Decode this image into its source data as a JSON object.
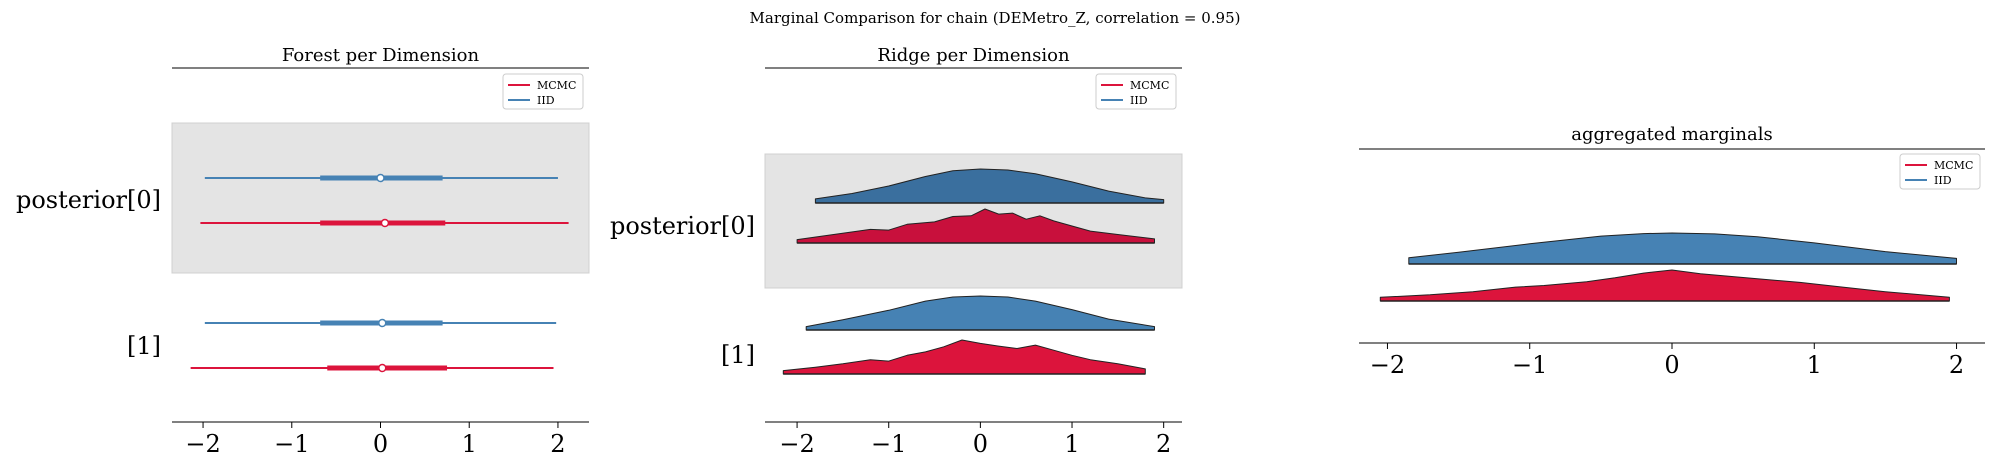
{
  "suptitle": "Marginal Comparison for chain (DEMetro_Z, correlation = 0.95)",
  "colors": {
    "mcmc": "#dc143c",
    "mcmc_dark": "#c8103c",
    "iid": "#4682b4",
    "iid_dark": "#3a6f9e",
    "band": "#e4e4e4"
  },
  "legend": [
    "MCMC",
    "IID"
  ],
  "chart_data": [
    {
      "type": "forest",
      "title": "Forest per Dimension",
      "xlim": [
        -2.35,
        2.35
      ],
      "xticks": [
        -2,
        -1,
        0,
        1,
        2
      ],
      "tick_labels": [
        "−2",
        "−1",
        "0",
        "1",
        "2"
      ],
      "legend_loc": "upper right",
      "rows": [
        {
          "label": "posterior[0]",
          "shaded": true,
          "series": [
            {
              "name": "IID",
              "hdi": [
                -1.98,
                2.0
              ],
              "iqr": [
                -0.68,
                0.7
              ],
              "median": 0.0
            },
            {
              "name": "MCMC",
              "hdi": [
                -2.03,
                2.12
              ],
              "iqr": [
                -0.68,
                0.73
              ],
              "median": 0.05
            }
          ]
        },
        {
          "label": "[1]",
          "shaded": false,
          "series": [
            {
              "name": "IID",
              "hdi": [
                -1.98,
                1.98
              ],
              "iqr": [
                -0.68,
                0.7
              ],
              "median": 0.02
            },
            {
              "name": "MCMC",
              "hdi": [
                -2.14,
                1.95
              ],
              "iqr": [
                -0.6,
                0.75
              ],
              "median": 0.02
            }
          ]
        }
      ]
    },
    {
      "type": "ridge",
      "title": "Ridge per Dimension",
      "xlim": [
        -2.35,
        2.2
      ],
      "xticks": [
        -2,
        -1,
        0,
        1,
        2
      ],
      "tick_labels": [
        "−2",
        "−1",
        "0",
        "1",
        "2"
      ],
      "legend_loc": "upper right",
      "rows": [
        {
          "label": "posterior[0]",
          "shaded": true,
          "series": [
            {
              "name": "IID",
              "x": [
                -1.8,
                -1.4,
                -1.0,
                -0.6,
                -0.3,
                0.0,
                0.3,
                0.6,
                1.0,
                1.4,
                1.8,
                2.0
              ],
              "y": [
                0.12,
                0.28,
                0.5,
                0.78,
                0.95,
                1.0,
                0.97,
                0.86,
                0.62,
                0.35,
                0.15,
                0.1
              ]
            },
            {
              "name": "MCMC",
              "x": [
                -2.0,
                -1.6,
                -1.2,
                -1.0,
                -0.8,
                -0.5,
                -0.3,
                -0.1,
                0.05,
                0.2,
                0.35,
                0.5,
                0.65,
                0.8,
                1.0,
                1.2,
                1.5,
                1.9
              ],
              "y": [
                0.1,
                0.25,
                0.4,
                0.38,
                0.55,
                0.62,
                0.78,
                0.8,
                1.0,
                0.85,
                0.88,
                0.7,
                0.8,
                0.65,
                0.5,
                0.35,
                0.25,
                0.12
              ]
            }
          ]
        },
        {
          "label": "[1]",
          "shaded": false,
          "series": [
            {
              "name": "IID",
              "x": [
                -1.9,
                -1.5,
                -1.0,
                -0.6,
                -0.3,
                0.0,
                0.3,
                0.6,
                1.0,
                1.4,
                1.9
              ],
              "y": [
                0.1,
                0.3,
                0.58,
                0.85,
                0.97,
                1.0,
                0.97,
                0.85,
                0.6,
                0.32,
                0.1
              ]
            },
            {
              "name": "MCMC",
              "x": [
                -2.15,
                -1.8,
                -1.5,
                -1.2,
                -1.0,
                -0.8,
                -0.6,
                -0.4,
                -0.2,
                0.0,
                0.2,
                0.4,
                0.6,
                0.8,
                1.0,
                1.2,
                1.5,
                1.8
              ],
              "y": [
                0.1,
                0.2,
                0.3,
                0.42,
                0.38,
                0.55,
                0.65,
                0.8,
                1.0,
                0.9,
                0.82,
                0.75,
                0.85,
                0.7,
                0.55,
                0.42,
                0.3,
                0.15
              ]
            }
          ]
        }
      ]
    },
    {
      "type": "ridge",
      "title": "aggregated marginals",
      "xlim": [
        -2.2,
        2.2
      ],
      "xticks": [
        -2,
        -1,
        0,
        1,
        2
      ],
      "tick_labels": [
        "−2",
        "−1",
        "0",
        "1",
        "2"
      ],
      "legend_loc": "upper right",
      "rows": [
        {
          "label": "",
          "shaded": false,
          "series": [
            {
              "name": "IID",
              "x": [
                -1.85,
                -1.5,
                -1.0,
                -0.5,
                -0.2,
                0.0,
                0.3,
                0.6,
                1.0,
                1.5,
                2.0
              ],
              "y": [
                0.2,
                0.38,
                0.65,
                0.9,
                0.98,
                1.0,
                0.97,
                0.88,
                0.68,
                0.4,
                0.18
              ]
            },
            {
              "name": "MCMC",
              "x": [
                -2.05,
                -1.7,
                -1.4,
                -1.1,
                -0.9,
                -0.6,
                -0.4,
                -0.2,
                0.0,
                0.2,
                0.4,
                0.6,
                0.9,
                1.2,
                1.5,
                1.95
              ],
              "y": [
                0.12,
                0.2,
                0.3,
                0.45,
                0.5,
                0.62,
                0.75,
                0.9,
                1.0,
                0.88,
                0.8,
                0.72,
                0.6,
                0.45,
                0.3,
                0.12
              ]
            }
          ]
        }
      ]
    }
  ]
}
